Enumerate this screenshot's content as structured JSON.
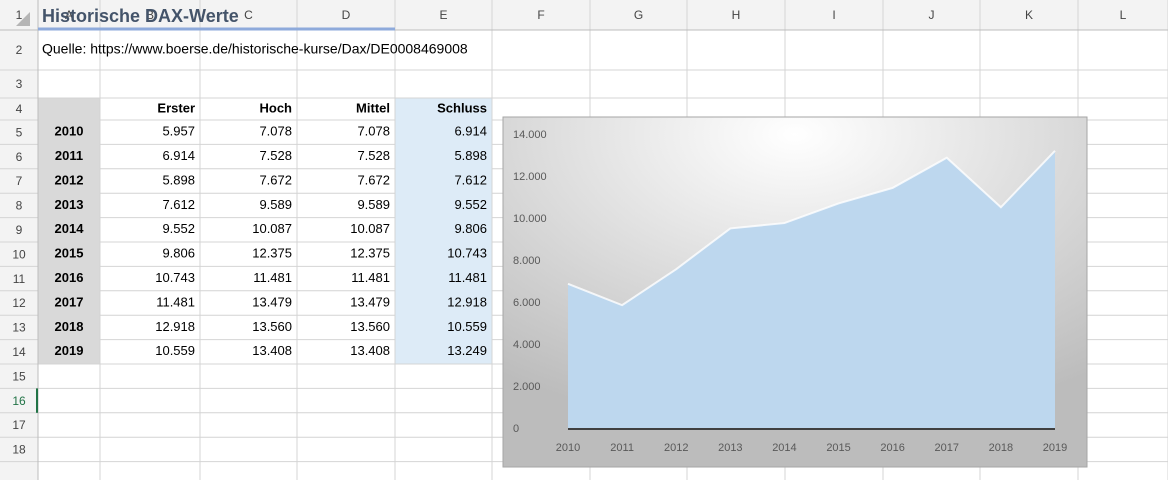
{
  "columns": [
    "A",
    "B",
    "C",
    "D",
    "E",
    "F",
    "G",
    "H",
    "I",
    "J",
    "K",
    "L"
  ],
  "rows": [
    "1",
    "2",
    "3",
    "4",
    "5",
    "6",
    "7",
    "8",
    "9",
    "10",
    "11",
    "12",
    "13",
    "14",
    "15",
    "16",
    "17",
    "18"
  ],
  "title": "Historische DAX-Werte",
  "source": "Quelle: https://www.boerse.de/historische-kurse/Dax/DE0008469008",
  "table": {
    "header": [
      "Erster",
      "Hoch",
      "Mittel",
      "Schluss"
    ],
    "rows": [
      [
        "2010",
        "5.957",
        "7.078",
        "7.078",
        "6.914"
      ],
      [
        "2011",
        "6.914",
        "7.528",
        "7.528",
        "5.898"
      ],
      [
        "2012",
        "5.898",
        "7.672",
        "7.672",
        "7.612"
      ],
      [
        "2013",
        "7.612",
        "9.589",
        "9.589",
        "9.552"
      ],
      [
        "2014",
        "9.552",
        "10.087",
        "10.087",
        "9.806"
      ],
      [
        "2015",
        "9.806",
        "12.375",
        "12.375",
        "10.743"
      ],
      [
        "2016",
        "10.743",
        "11.481",
        "11.481",
        "11.481"
      ],
      [
        "2017",
        "11.481",
        "13.479",
        "13.479",
        "12.918"
      ],
      [
        "2018",
        "12.918",
        "13.560",
        "13.560",
        "10.559"
      ],
      [
        "2019",
        "10.559",
        "13.408",
        "13.408",
        "13.249"
      ]
    ]
  },
  "chart": {
    "type": "area",
    "categories": [
      "2010",
      "2011",
      "2012",
      "2013",
      "2014",
      "2015",
      "2016",
      "2017",
      "2018",
      "2019"
    ],
    "values": [
      6914,
      5898,
      7612,
      9552,
      9806,
      10743,
      11481,
      12918,
      10559,
      13249
    ],
    "color": "#bdd7ee",
    "ylim": [
      0,
      14000
    ],
    "yticks": [
      0,
      {
        "value": 2000,
        "label": "2.000"
      },
      {
        "value": 4000,
        "label": "4.000"
      },
      {
        "value": 6000,
        "label": "6.000"
      },
      {
        "value": 8000,
        "label": "8.000"
      },
      {
        "value": 10000,
        "label": "10.000"
      },
      {
        "value": 12000,
        "label": "12.000"
      },
      {
        "value": 14000,
        "label": "14.000"
      }
    ]
  }
}
